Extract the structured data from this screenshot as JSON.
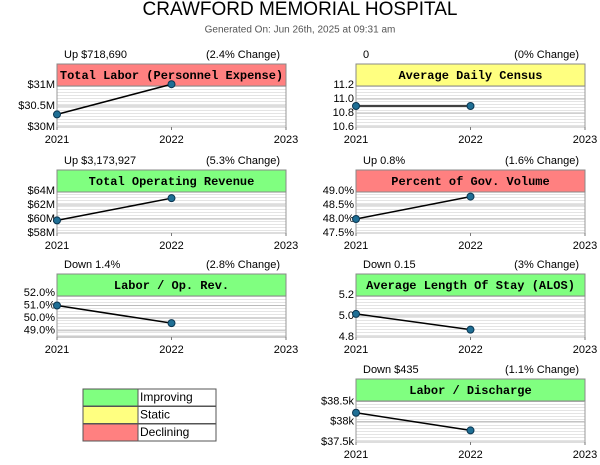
{
  "title": "CRAWFORD MEMORIAL HOSPITAL",
  "subtitle": "Generated On: Jun 26th, 2025 at 09:31 am",
  "legend": [
    {
      "name": "Improving",
      "color": "#80ff80"
    },
    {
      "name": "Static",
      "color": "#ffff80"
    },
    {
      "name": "Declining",
      "color": "#ff8080"
    }
  ],
  "chart_data": [
    {
      "type": "line",
      "title": "Total Labor (Personnel Expense)",
      "change": "Up $718,690",
      "change_pct": "(2.4% Change)",
      "color": "#ff8080",
      "x": [
        2021,
        2022
      ],
      "values": [
        30300000,
        31018690
      ],
      "xlim": [
        2021,
        2023
      ],
      "xticks": [
        2021,
        2022,
        2023
      ],
      "ylim": [
        30000000,
        31500000
      ],
      "yticks": [
        {
          "value": 30000000,
          "label": "$30M"
        },
        {
          "value": 30500000,
          "label": "$30.5M"
        },
        {
          "value": 31000000,
          "label": "$31M"
        }
      ]
    },
    {
      "type": "line",
      "title": "Average Daily Census",
      "change": "0",
      "change_pct": "(0% Change)",
      "color": "#ffff80",
      "x": [
        2021,
        2022
      ],
      "values": [
        10.9,
        10.9
      ],
      "xlim": [
        2021,
        2023
      ],
      "xticks": [
        2021,
        2022,
        2023
      ],
      "ylim": [
        10.6,
        11.5
      ],
      "yticks": [
        10.6,
        10.8,
        {
          "value": 11.0,
          "label": "11.0"
        },
        11.2
      ]
    },
    {
      "type": "line",
      "title": "Total Operating Revenue",
      "change": "Up $3,173,927",
      "change_pct": "(5.3% Change)",
      "color": "#80ff80",
      "x": [
        2021,
        2022
      ],
      "values": [
        59800000,
        62973927
      ],
      "xlim": [
        2021,
        2023
      ],
      "xticks": [
        2021,
        2022,
        2023
      ],
      "ylim": [
        58000000,
        67000000
      ],
      "yticks": [
        {
          "value": 58000000,
          "label": "$58M"
        },
        {
          "value": 60000000,
          "label": "$60M"
        },
        {
          "value": 62000000,
          "label": "$62M"
        },
        {
          "value": 64000000,
          "label": "$64M"
        }
      ]
    },
    {
      "type": "line",
      "title": "Percent of Gov. Volume",
      "change": "Up 0.8%",
      "change_pct": "(1.6% Change)",
      "color": "#ff8080",
      "x": [
        2021,
        2022
      ],
      "values": [
        48.0,
        48.8
      ],
      "xlim": [
        2021,
        2023
      ],
      "xticks": [
        2021,
        2022,
        2023
      ],
      "ylim": [
        47.5,
        49.75
      ],
      "yticks": [
        {
          "value": 47.5,
          "label": "47.5%"
        },
        {
          "value": 48.0,
          "label": "48.0%"
        },
        {
          "value": 48.5,
          "label": "48.5%"
        },
        {
          "value": 49.0,
          "label": "49.0%"
        }
      ]
    },
    {
      "type": "line",
      "title": "Labor / Op. Rev.",
      "change": "Down 1.4%",
      "change_pct": "(2.8% Change)",
      "color": "#80ff80",
      "x": [
        2021,
        2022
      ],
      "values": [
        51.0,
        49.6
      ],
      "xlim": [
        2021,
        2023
      ],
      "xticks": [
        2021,
        2022,
        2023
      ],
      "ylim": [
        48.5,
        53.5
      ],
      "yticks": [
        {
          "value": 49.0,
          "label": "49.0%"
        },
        {
          "value": 50.0,
          "label": "50.0%"
        },
        {
          "value": 51.0,
          "label": "51.0%"
        },
        {
          "value": 52.0,
          "label": "52.0%"
        }
      ]
    },
    {
      "type": "line",
      "title": "Average Length Of Stay (ALOS)",
      "change": "Down 0.15",
      "change_pct": "(3% Change)",
      "color": "#80ff80",
      "x": [
        2021,
        2022
      ],
      "values": [
        5.02,
        4.87
      ],
      "xlim": [
        2021,
        2023
      ],
      "xticks": [
        2021,
        2022,
        2023
      ],
      "ylim": [
        4.8,
        5.4
      ],
      "yticks": [
        4.8,
        {
          "value": 5.0,
          "label": "5.0"
        },
        5.2
      ]
    },
    {
      "type": "line",
      "title": "Labor / Discharge",
      "change": "Down $435",
      "change_pct": "(1.1% Change)",
      "color": "#80ff80",
      "x": [
        2021,
        2022
      ],
      "values": [
        38220,
        37785
      ],
      "xlim": [
        2021,
        2023
      ],
      "xticks": [
        2021,
        2022,
        2023
      ],
      "ylim": [
        37500,
        39050
      ],
      "yticks": [
        {
          "value": 37500,
          "label": "$37.5k"
        },
        {
          "value": 38000,
          "label": "$38k"
        },
        {
          "value": 38500,
          "label": "$38.5k"
        }
      ]
    }
  ]
}
